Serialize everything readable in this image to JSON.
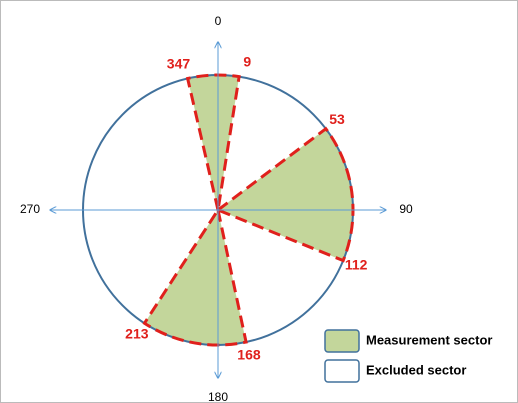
{
  "axes": [
    0,
    90,
    180,
    270
  ],
  "sectors": [
    {
      "from": 347,
      "to": 9
    },
    {
      "from": 53,
      "to": 112
    },
    {
      "from": 168,
      "to": 213
    }
  ],
  "legend": [
    {
      "label": "Measurement sector",
      "color": "#c3d69b"
    },
    {
      "label": "Excluded sector",
      "color": "#ffffff"
    }
  ]
}
